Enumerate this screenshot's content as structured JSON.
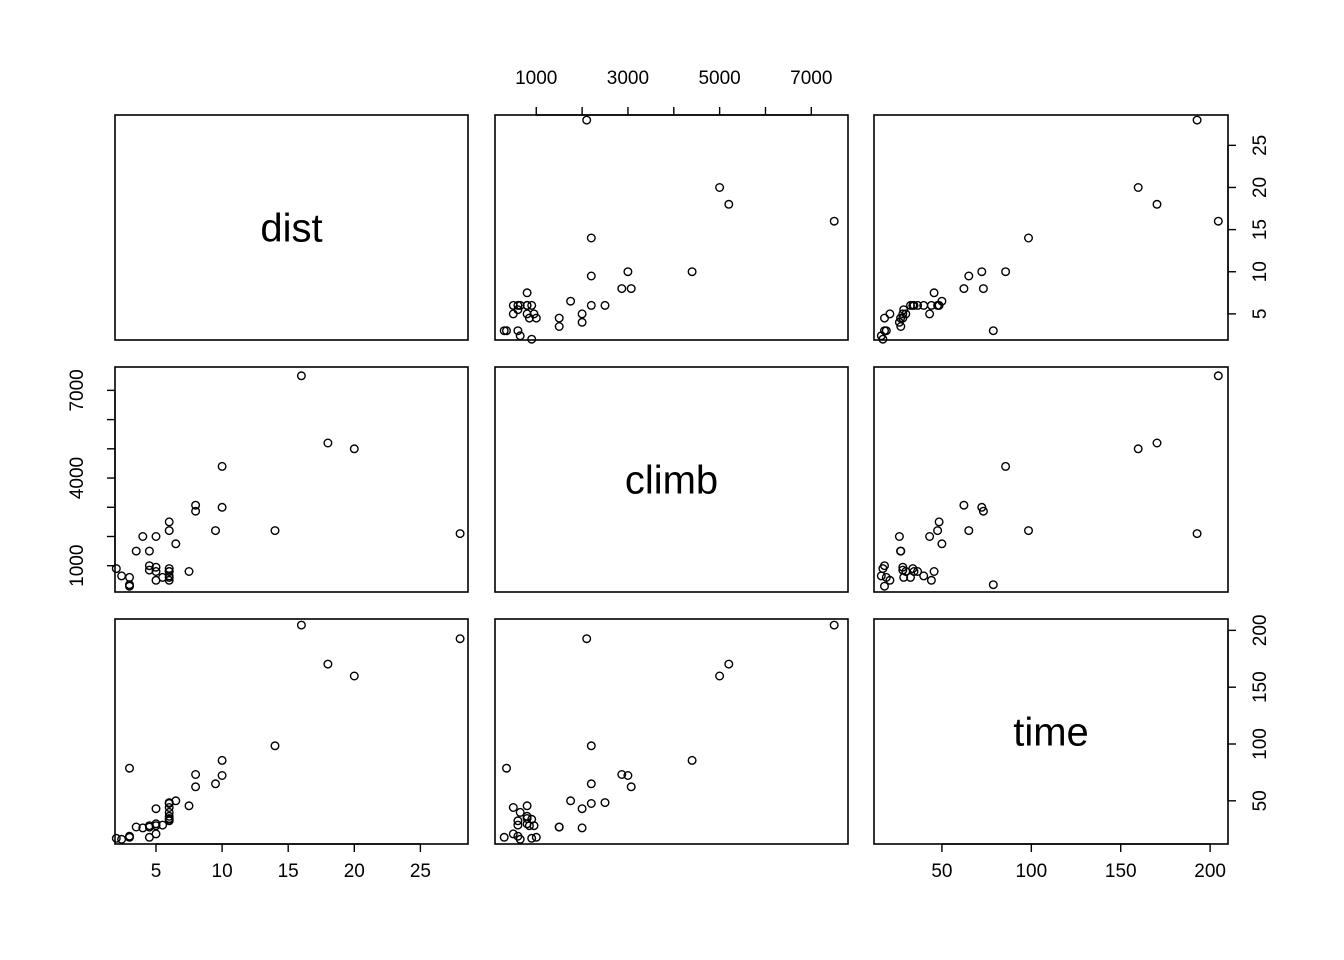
{
  "chart_data": {
    "type": "scatter",
    "kind": "scatterplot-matrix",
    "variables": [
      "dist",
      "climb",
      "time"
    ],
    "axes": {
      "dist": {
        "ticks": [
          5,
          10,
          15,
          20,
          25
        ],
        "range": [
          1.9,
          28.6
        ]
      },
      "climb": {
        "ticks": [
          1000,
          3000,
          5000,
          7000
        ],
        "ticks_left": [
          1000,
          4000,
          7000
        ],
        "range": [
          100,
          7800
        ]
      },
      "time": {
        "ticks": [
          50,
          100,
          150,
          200
        ],
        "range": [
          12,
          210
        ]
      }
    },
    "points": [
      {
        "dist": 2.4,
        "climb": 650,
        "time": 16.1
      },
      {
        "dist": 6.0,
        "climb": 2500,
        "time": 48.4
      },
      {
        "dist": 6.0,
        "climb": 900,
        "time": 33.7
      },
      {
        "dist": 7.5,
        "climb": 800,
        "time": 45.6
      },
      {
        "dist": 8.0,
        "climb": 3070,
        "time": 62.3
      },
      {
        "dist": 8.0,
        "climb": 2866,
        "time": 73.2
      },
      {
        "dist": 16.0,
        "climb": 7500,
        "time": 204.6
      },
      {
        "dist": 6.0,
        "climb": 800,
        "time": 36.4
      },
      {
        "dist": 5.0,
        "climb": 800,
        "time": 29.8
      },
      {
        "dist": 6.0,
        "climb": 650,
        "time": 39.8
      },
      {
        "dist": 28.0,
        "climb": 2100,
        "time": 192.7
      },
      {
        "dist": 5.0,
        "climb": 2000,
        "time": 43.1
      },
      {
        "dist": 9.5,
        "climb": 2200,
        "time": 65.0
      },
      {
        "dist": 6.0,
        "climb": 500,
        "time": 44.1
      },
      {
        "dist": 4.5,
        "climb": 1500,
        "time": 26.9
      },
      {
        "dist": 10.0,
        "climb": 3000,
        "time": 72.3
      },
      {
        "dist": 14.0,
        "climb": 2200,
        "time": 98.4
      },
      {
        "dist": 3.0,
        "climb": 350,
        "time": 78.7
      },
      {
        "dist": 4.5,
        "climb": 1000,
        "time": 17.9
      },
      {
        "dist": 5.5,
        "climb": 600,
        "time": 28.6
      },
      {
        "dist": 3.0,
        "climb": 300,
        "time": 17.9
      },
      {
        "dist": 3.5,
        "climb": 1500,
        "time": 27.0
      },
      {
        "dist": 6.0,
        "climb": 2200,
        "time": 47.6
      },
      {
        "dist": 2.0,
        "climb": 900,
        "time": 17.0
      },
      {
        "dist": 3.0,
        "climb": 600,
        "time": 18.9
      },
      {
        "dist": 4.0,
        "climb": 2000,
        "time": 26.2
      },
      {
        "dist": 6.0,
        "climb": 800,
        "time": 34.4
      },
      {
        "dist": 5.0,
        "climb": 950,
        "time": 28.1
      },
      {
        "dist": 6.5,
        "climb": 1750,
        "time": 50.0
      },
      {
        "dist": 5.0,
        "climb": 500,
        "time": 20.9
      },
      {
        "dist": 10.0,
        "climb": 4400,
        "time": 85.6
      },
      {
        "dist": 6.0,
        "climb": 600,
        "time": 32.4
      },
      {
        "dist": 18.0,
        "climb": 5200,
        "time": 170.3
      },
      {
        "dist": 4.5,
        "climb": 850,
        "time": 28.1
      },
      {
        "dist": 20.0,
        "climb": 5000,
        "time": 159.8
      }
    ],
    "grid": false,
    "legend": "none"
  }
}
